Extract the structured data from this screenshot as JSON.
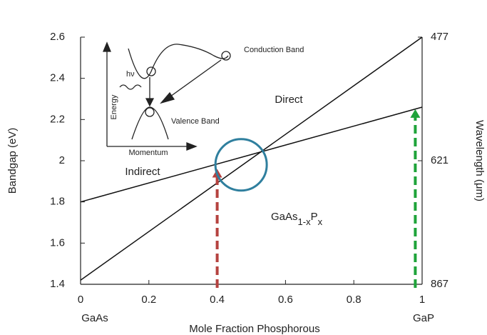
{
  "chart_data": {
    "type": "line",
    "x_label": "Mole Fraction Phosphorous",
    "y_label": "Bandgap (eV)",
    "y2_label": "Wavelength (μm)",
    "x": [
      0,
      1
    ],
    "series": [
      {
        "name": "Direct",
        "color": "#111111",
        "values": [
          1.42,
          2.6
        ]
      },
      {
        "name": "Indirect",
        "color": "#111111",
        "values": [
          1.8,
          2.26
        ]
      }
    ],
    "xlim": [
      0,
      1
    ],
    "xticks": [
      0,
      0.2,
      0.4,
      0.6,
      0.8,
      1
    ],
    "ylim": [
      1.4,
      2.6
    ],
    "yticks": [
      1.4,
      1.6,
      1.8,
      2,
      2.2,
      2.4,
      2.6
    ],
    "wavelength_labels": [
      {
        "y": 2.6,
        "label": "477"
      },
      {
        "y": 2.0,
        "label": "621"
      },
      {
        "y": 1.4,
        "label": "867"
      }
    ],
    "end_labels": [
      {
        "x": 0,
        "label": "GaAs"
      },
      {
        "x": 1,
        "label": "GaP"
      }
    ],
    "formula": [
      {
        "text": "GaAs"
      },
      {
        "text": "1-x",
        "sub": true
      },
      {
        "text": "P"
      },
      {
        "text": "x",
        "sub": true
      }
    ],
    "arrows": [
      {
        "x": 0.4,
        "y": 1.96,
        "color": "#b5423f"
      },
      {
        "x": 0.98,
        "y": 2.25,
        "color": "#1fa33a"
      }
    ],
    "highlight": {
      "x": 0.47,
      "y": 1.98,
      "color": "#2f7f9e"
    },
    "inset": {
      "conduction": "Conduction Band",
      "valence": "Valence Band",
      "energy": "Energy",
      "momentum": "Momentum",
      "photon": "hν"
    }
  }
}
